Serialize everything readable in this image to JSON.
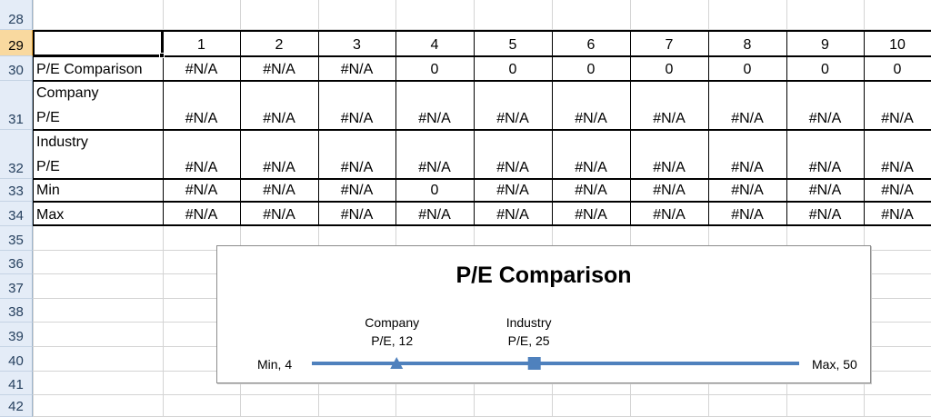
{
  "row_numbers": [
    "28",
    "29",
    "30",
    "31",
    "32",
    "33",
    "34",
    "35",
    "36",
    "37",
    "38",
    "39",
    "40",
    "41",
    "42"
  ],
  "header_row": [
    "1",
    "2",
    "3",
    "4",
    "5",
    "6",
    "7",
    "8",
    "9",
    "10"
  ],
  "rows": [
    {
      "label": "P/E Comparison",
      "values": [
        "#N/A",
        "#N/A",
        "#N/A",
        "0",
        "0",
        "0",
        "0",
        "0",
        "0",
        "0"
      ]
    },
    {
      "label_line1": "Company",
      "label_line2": "P/E",
      "values": [
        "#N/A",
        "#N/A",
        "#N/A",
        "#N/A",
        "#N/A",
        "#N/A",
        "#N/A",
        "#N/A",
        "#N/A",
        "#N/A"
      ]
    },
    {
      "label_line1": "Industry",
      "label_line2": "P/E",
      "values": [
        "#N/A",
        "#N/A",
        "#N/A",
        "#N/A",
        "#N/A",
        "#N/A",
        "#N/A",
        "#N/A",
        "#N/A",
        "#N/A"
      ]
    },
    {
      "label": "Min",
      "values": [
        "#N/A",
        "#N/A",
        "#N/A",
        "0",
        "#N/A",
        "#N/A",
        "#N/A",
        "#N/A",
        "#N/A",
        "#N/A"
      ]
    },
    {
      "label": "Max",
      "values": [
        "#N/A",
        "#N/A",
        "#N/A",
        "#N/A",
        "#N/A",
        "#N/A",
        "#N/A",
        "#N/A",
        "#N/A",
        "#N/A"
      ]
    }
  ],
  "chart_data": {
    "type": "scatter",
    "title": "P/E Comparison",
    "xlim": [
      4,
      50
    ],
    "line_color": "#4f81bd",
    "points": [
      {
        "line1": "Min, 4",
        "line2": "",
        "x": 4,
        "marker": "none"
      },
      {
        "line1": "Company",
        "line2": "P/E, 12",
        "x": 12,
        "marker": "triangle"
      },
      {
        "line1": "Industry",
        "line2": "P/E, 25",
        "x": 25,
        "marker": "square"
      },
      {
        "line1": "Max, 50",
        "line2": "",
        "x": 50,
        "marker": "none"
      }
    ]
  }
}
